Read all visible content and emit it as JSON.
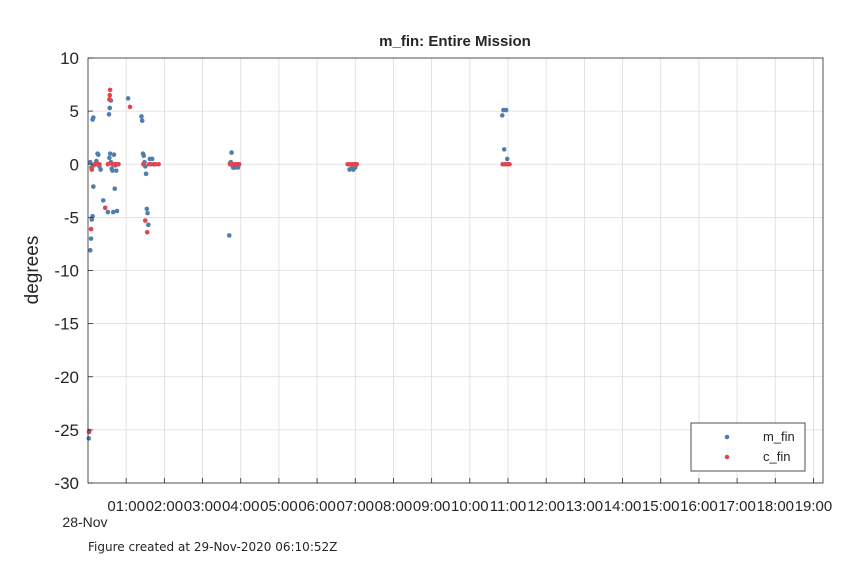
{
  "chart_data": {
    "type": "scatter",
    "title": "m_fin: Entire Mission",
    "xlabel": "",
    "ylabel": "degrees",
    "date_label": "28-Nov",
    "x_unit": "time of day (hours), 28-Nov",
    "xlim": [
      0,
      19.25
    ],
    "ylim": [
      -30,
      10
    ],
    "yticks": [
      10,
      5,
      0,
      -5,
      -10,
      -15,
      -20,
      -25,
      -30
    ],
    "xticks": [
      {
        "value": 1,
        "label": "01:00"
      },
      {
        "value": 2,
        "label": "02:00"
      },
      {
        "value": 3,
        "label": "03:00"
      },
      {
        "value": 4,
        "label": "04:00"
      },
      {
        "value": 5,
        "label": "05:00"
      },
      {
        "value": 6,
        "label": "06:00"
      },
      {
        "value": 7,
        "label": "07:00"
      },
      {
        "value": 8,
        "label": "08:00"
      },
      {
        "value": 9,
        "label": "09:00"
      },
      {
        "value": 10,
        "label": "10:00"
      },
      {
        "value": 11,
        "label": "11:00"
      },
      {
        "value": 12,
        "label": "12:00"
      },
      {
        "value": 13,
        "label": "13:00"
      },
      {
        "value": 14,
        "label": "14:00"
      },
      {
        "value": 15,
        "label": "15:00"
      },
      {
        "value": 16,
        "label": "16:00"
      },
      {
        "value": 17,
        "label": "17:00"
      },
      {
        "value": 18,
        "label": "18:00"
      },
      {
        "value": 19,
        "label": "19:00"
      }
    ],
    "grid": true,
    "legend_position": "bottom-right",
    "series": [
      {
        "name": "m_fin",
        "color": "#4f7fae",
        "points": [
          [
            0.02,
            -25.8
          ],
          [
            0.03,
            -25.1
          ],
          [
            0.06,
            -8.1
          ],
          [
            0.08,
            -7.0
          ],
          [
            0.1,
            -5.2
          ],
          [
            0.12,
            -4.9
          ],
          [
            0.14,
            -2.1
          ],
          [
            0.06,
            0.2
          ],
          [
            0.09,
            -0.3
          ],
          [
            0.12,
            4.2
          ],
          [
            0.14,
            4.4
          ],
          [
            0.18,
            0.0
          ],
          [
            0.22,
            0.3
          ],
          [
            0.25,
            1.0
          ],
          [
            0.27,
            0.9
          ],
          [
            0.3,
            -0.2
          ],
          [
            0.33,
            -0.5
          ],
          [
            0.4,
            -3.4
          ],
          [
            0.52,
            -4.5
          ],
          [
            0.56,
            0.6
          ],
          [
            0.58,
            1.0
          ],
          [
            0.6,
            0.2
          ],
          [
            0.62,
            -0.4
          ],
          [
            0.64,
            -0.6
          ],
          [
            0.66,
            -4.5
          ],
          [
            0.68,
            0.9
          ],
          [
            0.7,
            -2.3
          ],
          [
            0.72,
            -0.1
          ],
          [
            0.74,
            -0.6
          ],
          [
            0.76,
            -4.4
          ],
          [
            0.55,
            4.7
          ],
          [
            0.57,
            5.3
          ],
          [
            0.6,
            6.0
          ],
          [
            1.05,
            6.2
          ],
          [
            1.4,
            4.5
          ],
          [
            1.42,
            4.1
          ],
          [
            1.44,
            1.0
          ],
          [
            1.46,
            0.8
          ],
          [
            1.48,
            0.2
          ],
          [
            1.5,
            -0.2
          ],
          [
            1.52,
            -0.9
          ],
          [
            1.54,
            -4.2
          ],
          [
            1.56,
            -4.6
          ],
          [
            1.58,
            -5.7
          ],
          [
            1.62,
            0.5
          ],
          [
            1.68,
            0.5
          ],
          [
            1.72,
            0.0
          ],
          [
            1.76,
            0.0
          ],
          [
            3.7,
            -6.7
          ],
          [
            3.72,
            0.1
          ],
          [
            3.74,
            0.2
          ],
          [
            3.76,
            1.1
          ],
          [
            3.78,
            -0.1
          ],
          [
            3.8,
            -0.3
          ],
          [
            3.83,
            -0.3
          ],
          [
            3.86,
            -0.3
          ],
          [
            3.9,
            0.0
          ],
          [
            3.93,
            -0.3
          ],
          [
            6.85,
            -0.5
          ],
          [
            6.9,
            -0.4
          ],
          [
            6.95,
            -0.5
          ],
          [
            7.0,
            -0.3
          ],
          [
            7.03,
            0.0
          ],
          [
            10.85,
            4.6
          ],
          [
            10.88,
            5.1
          ],
          [
            10.9,
            1.4
          ],
          [
            10.95,
            5.1
          ],
          [
            10.98,
            0.5
          ]
        ]
      },
      {
        "name": "c_fin",
        "color": "#e5444d",
        "points": [
          [
            0.03,
            -25.2
          ],
          [
            0.08,
            -6.1
          ],
          [
            0.1,
            -0.5
          ],
          [
            0.14,
            -0.1
          ],
          [
            0.2,
            0.0
          ],
          [
            0.25,
            0.0
          ],
          [
            0.3,
            0.0
          ],
          [
            0.45,
            -4.1
          ],
          [
            0.52,
            0.0
          ],
          [
            0.56,
            6.1
          ],
          [
            0.57,
            6.5
          ],
          [
            0.58,
            7.0
          ],
          [
            0.6,
            0.1
          ],
          [
            0.65,
            0.0
          ],
          [
            0.7,
            0.0
          ],
          [
            0.75,
            0.0
          ],
          [
            0.8,
            0.0
          ],
          [
            1.1,
            5.4
          ],
          [
            1.45,
            0.0
          ],
          [
            1.5,
            -5.3
          ],
          [
            1.55,
            -6.4
          ],
          [
            1.6,
            0.0
          ],
          [
            1.65,
            0.0
          ],
          [
            1.75,
            0.0
          ],
          [
            1.85,
            0.0
          ],
          [
            3.72,
            0.0
          ],
          [
            3.78,
            0.0
          ],
          [
            3.84,
            0.0
          ],
          [
            3.9,
            0.0
          ],
          [
            3.96,
            0.0
          ],
          [
            6.8,
            0.0
          ],
          [
            6.86,
            0.0
          ],
          [
            6.92,
            0.0
          ],
          [
            6.98,
            0.0
          ],
          [
            7.04,
            0.0
          ],
          [
            10.86,
            0.0
          ],
          [
            10.92,
            0.0
          ],
          [
            10.98,
            0.0
          ],
          [
            11.04,
            0.0
          ]
        ]
      }
    ]
  },
  "footer": {
    "text": "Figure created at 29-Nov-2020 06:10:52Z"
  }
}
